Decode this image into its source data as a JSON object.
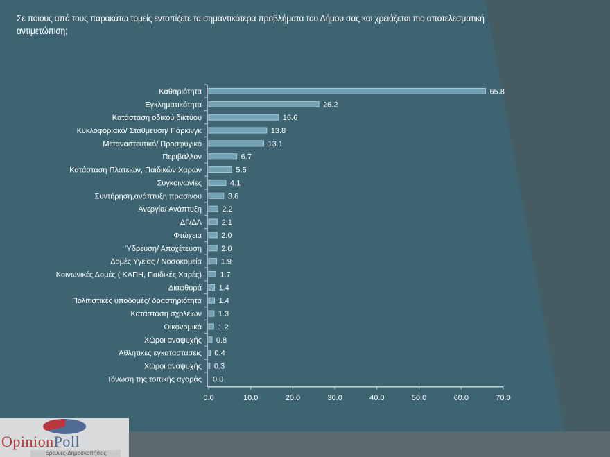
{
  "title": "Σε ποιους από τους παρακάτω τομείς εντοπίζετε τα σημαντικότερα προβλήματα του Δήμου σας και χρειάζεται πιο αποτελεσματική αντιμετώπιση;",
  "colors": {
    "background": "#3d6470",
    "bar": "#72a2b3",
    "bar_edge": "#a9cbd6",
    "text": "#ffffff",
    "logo_red": "#b8373c",
    "logo_blue": "#506b95"
  },
  "logo": {
    "brand_a": "Opinion",
    "brand_b": "Poll",
    "tagline": "Έρευνες-Δημοσκοπήσεις"
  },
  "chart_data": {
    "type": "bar",
    "orientation": "horizontal",
    "title": "",
    "xlabel": "",
    "ylabel": "",
    "xlim": [
      0,
      70
    ],
    "x_ticks": [
      "0.0",
      "10.0",
      "20.0",
      "30.0",
      "40.0",
      "50.0",
      "60.0",
      "70.0"
    ],
    "grid": false,
    "categories": [
      "Καθαριότητα",
      "Εγκληματικότητα",
      "Κατάσταση οδικού δικτύου",
      "Κυκλοφοριακό/ Στάθμευση/ Πάρκινγκ",
      "Μεταναστευτικό/ Προσφυγικό",
      "Περιβάλλον",
      "Κατάσταση Πλατειών, Παιδικών Χαρών",
      "Συγκοινωνίες",
      "Συντήρηση,ανάπτυξη πρασίνου",
      "Ανεργία/ Ανάπτυξη",
      "ΔΓ/ΔΑ",
      "Φτώχεια",
      "Ύδρευση/ Αποχέτευση",
      "Δομές Υγείας / Νοσοκομεία",
      "Κοινωνικές Δομές ( ΚΑΠΗ, Παιδικές Χαρές)",
      "Διαφθορά",
      "Πολιτιστικές υποδομές/ δραστηριότητα",
      "Κατάσταση σχολείων",
      "Οικονομικά",
      "Χώροι αναψυχής",
      "Αθλητικές εγκαταστάσεις",
      "Χώροι αναψυχής",
      "Τόνωση της τοπικής αγοράς"
    ],
    "values": [
      65.8,
      26.2,
      16.6,
      13.8,
      13.1,
      6.7,
      5.5,
      4.1,
      3.6,
      2.2,
      2.1,
      2.0,
      2.0,
      1.9,
      1.7,
      1.4,
      1.4,
      1.3,
      1.2,
      0.8,
      0.4,
      0.3,
      0.0
    ],
    "value_labels": [
      "65.8",
      "26.2",
      "16.6",
      "13.8",
      "13.1",
      "6.7",
      "5.5",
      "4.1",
      "3.6",
      "2.2",
      "2.1",
      "2.0",
      "2.0",
      "1.9",
      "1.7",
      "1.4",
      "1.4",
      "1.3",
      "1.2",
      "0.8",
      "0.4",
      "0.3",
      "0.0"
    ]
  }
}
